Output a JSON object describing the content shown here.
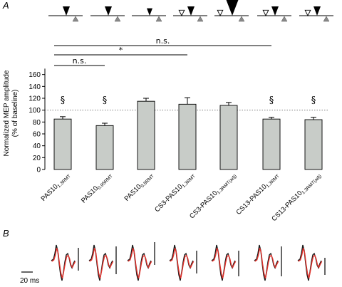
{
  "panels": {
    "a": "A",
    "b": "B"
  },
  "chart_data": {
    "type": "bar",
    "ylabel_lines": [
      "Normalized MEP amplitude",
      "(% of baseline)"
    ],
    "ylim": [
      0,
      180
    ],
    "yticks": [
      0,
      20,
      40,
      60,
      80,
      100,
      120,
      140,
      160
    ],
    "reference_line": 100,
    "categories": [
      {
        "main": "PAS10",
        "sub": "1.3RMT"
      },
      {
        "main": "PAS10",
        "sub": "0.95RMT"
      },
      {
        "main": "PAS10",
        "sub": "0.8RMT"
      },
      {
        "main": "CS3-PAS10",
        "sub": "1.3RMT"
      },
      {
        "main": "CS3-PAS10",
        "sub": "1.3RMT(adj)"
      },
      {
        "main": "CS13-PAS10",
        "sub": "1.3RMT"
      },
      {
        "main": "CS13-PAS10",
        "sub": "1.3RMT(adj)"
      }
    ],
    "values": [
      85,
      74,
      115,
      110,
      108,
      85,
      84
    ],
    "errors": [
      4,
      4,
      5,
      11,
      5,
      3,
      4
    ],
    "section_marks": [
      "§",
      "§",
      "",
      "",
      "",
      "§",
      "§"
    ],
    "comparisons": [
      {
        "from": 0,
        "to": 1,
        "label": "n.s."
      },
      {
        "from": 0,
        "to": 3,
        "label": "*"
      },
      {
        "from": 0,
        "to": 5,
        "label": "n.s."
      }
    ],
    "bar_color": "#c8ccc8",
    "stimulus_schematic": [
      {
        "big": 1,
        "small": 0,
        "open": 0
      },
      {
        "big": 1,
        "small": 0,
        "open": 0
      },
      {
        "big": 0.8,
        "small": 0,
        "open": 0
      },
      {
        "big": 1,
        "small": 0.7,
        "open": 1
      },
      {
        "big": 1.8,
        "small": 0.7,
        "open": 1
      },
      {
        "big": 1,
        "small": 0.7,
        "open": 1
      },
      {
        "big": 1,
        "small": 0.7,
        "open": 1
      }
    ]
  },
  "traces_panel": {
    "scale_bar_label": "20 ms",
    "trace_colors": [
      "#1a1a1a",
      "#e0302a"
    ]
  }
}
